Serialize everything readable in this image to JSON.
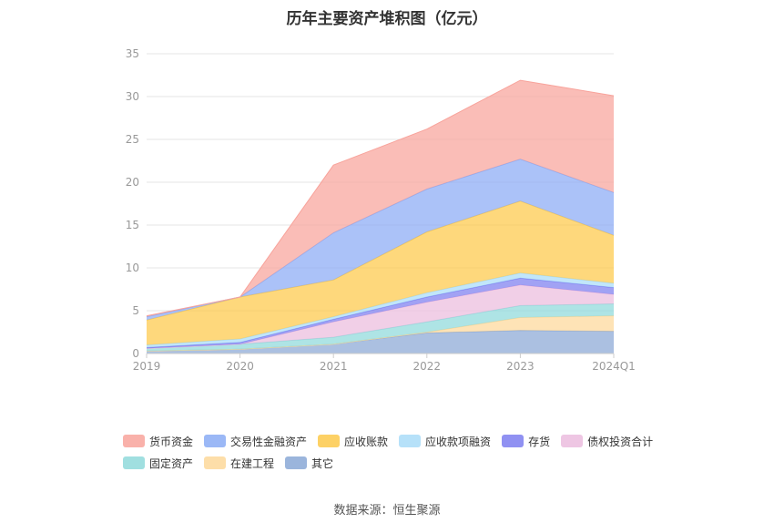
{
  "title": "历年主要资产堆积图（亿元）",
  "source": "数据来源：恒生聚源",
  "chart_data": {
    "type": "area",
    "stacked": true,
    "categories": [
      "2019",
      "2020",
      "2021",
      "2022",
      "2023",
      "2024Q1"
    ],
    "ylim": [
      0,
      35
    ],
    "yticks": [
      0,
      5,
      10,
      15,
      20,
      25,
      30,
      35
    ],
    "grid": true,
    "legend_position": "bottom",
    "series": [
      {
        "name": "其它",
        "color": "#8aa8d6",
        "values": [
          0.3,
          0.5,
          1.1,
          2.4,
          2.7,
          2.6
        ]
      },
      {
        "name": "在建工程",
        "color": "#fdd89a",
        "values": [
          0.0,
          0.0,
          0.0,
          0.1,
          1.5,
          1.8
        ]
      },
      {
        "name": "固定资产",
        "color": "#8fd9db",
        "values": [
          0.3,
          0.6,
          0.8,
          1.2,
          1.4,
          1.4
        ]
      },
      {
        "name": "债权投资合计",
        "color": "#ebbcde",
        "values": [
          0.0,
          0.0,
          1.8,
          2.3,
          2.4,
          1.1
        ]
      },
      {
        "name": "存货",
        "color": "#7d7ef0",
        "values": [
          0.1,
          0.2,
          0.3,
          0.6,
          0.8,
          0.8
        ]
      },
      {
        "name": "应收款项融资",
        "color": "#a9dcf8",
        "values": [
          0.3,
          0.4,
          0.3,
          0.5,
          0.6,
          0.5
        ]
      },
      {
        "name": "应收账款",
        "color": "#fdc94a",
        "values": [
          2.9,
          4.9,
          4.3,
          7.1,
          8.4,
          5.6
        ]
      },
      {
        "name": "交易性金融资产",
        "color": "#8aabf5",
        "values": [
          0.4,
          0.0,
          5.5,
          5.0,
          4.9,
          5.0
        ]
      },
      {
        "name": "货币资金",
        "color": "#f8a39b",
        "values": [
          0.1,
          0.0,
          7.9,
          7.0,
          9.2,
          11.3
        ]
      }
    ]
  },
  "legend": {
    "rows": [
      [
        "货币资金",
        "交易性金融资产",
        "应收账款",
        "应收款项融资",
        "存货",
        "债权投资合计"
      ],
      [
        "固定资产",
        "在建工程",
        "其它"
      ]
    ]
  }
}
